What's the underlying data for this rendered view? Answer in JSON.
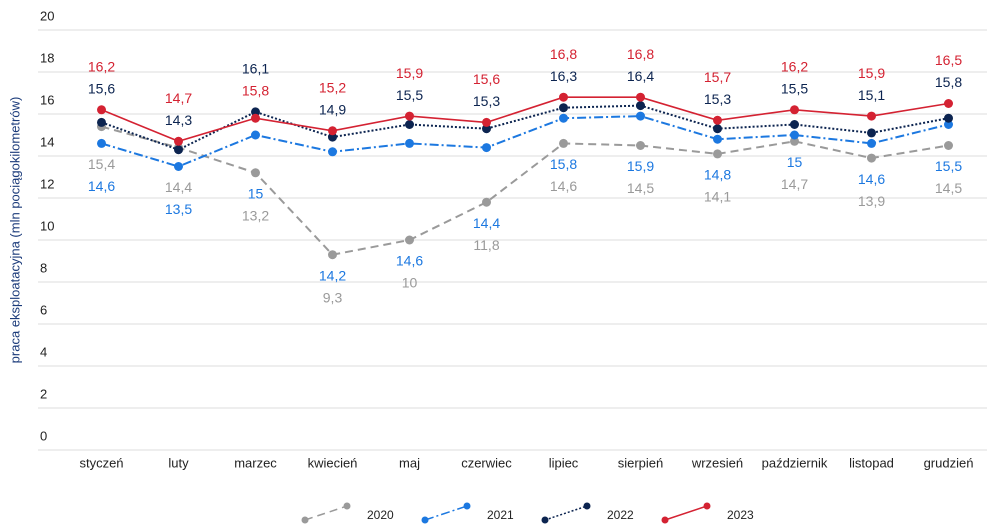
{
  "chart_data": {
    "type": "line",
    "y_label": "praca eksploatacyjna (mln pociągokilometrów)",
    "categories": [
      "styczeń",
      "luty",
      "marzec",
      "kwiecień",
      "maj",
      "czerwiec",
      "lipiec",
      "sierpień",
      "wrzesień",
      "październik",
      "listopad",
      "grudzień"
    ],
    "ylim": [
      0,
      20
    ],
    "yticks": [
      0,
      2,
      4,
      6,
      8,
      10,
      12,
      14,
      16,
      18,
      20
    ],
    "grid": true,
    "legend": "bottom",
    "series": [
      {
        "name": "2020",
        "color": "#9a9a9a",
        "dash": "dashed",
        "values": [
          15.4,
          14.4,
          13.2,
          9.3,
          10,
          11.8,
          14.6,
          14.5,
          14.1,
          14.7,
          13.9,
          14.5
        ],
        "value_labels": [
          "15,4",
          "14,4",
          "13,2",
          "9,3",
          "10",
          "11,8",
          "14,6",
          "14,5",
          "14,1",
          "14,7",
          "13,9",
          "14,5"
        ]
      },
      {
        "name": "2021",
        "color": "#1c78e0",
        "dash": "dashdot",
        "values": [
          14.6,
          13.5,
          15,
          14.2,
          14.6,
          14.4,
          15.8,
          15.9,
          14.8,
          15,
          14.6,
          15.5
        ],
        "value_labels": [
          "14,6",
          "13,5",
          "15",
          "14,2",
          "14,6",
          "14,4",
          "15,8",
          "15,9",
          "14,8",
          "15",
          "14,6",
          "15,5"
        ]
      },
      {
        "name": "2022",
        "color": "#0c2450",
        "dash": "dotted",
        "values": [
          15.6,
          14.3,
          16.1,
          14.9,
          15.5,
          15.3,
          16.3,
          16.4,
          15.3,
          15.5,
          15.1,
          15.8
        ],
        "value_labels": [
          "15,6",
          "14,3",
          "16,1",
          "14,9",
          "15,5",
          "15,3",
          "16,3",
          "16,4",
          "15,3",
          "15,5",
          "15,1",
          "15,8"
        ]
      },
      {
        "name": "2023",
        "color": "#d42232",
        "dash": "solid",
        "values": [
          16.2,
          14.7,
          15.8,
          15.2,
          15.9,
          15.6,
          16.8,
          16.8,
          15.7,
          16.2,
          15.9,
          16.5
        ],
        "value_labels": [
          "16,2",
          "14,7",
          "15,8",
          "15,2",
          "15,9",
          "15,6",
          "16,8",
          "16,8",
          "15,7",
          "16,2",
          "15,9",
          "16,5"
        ]
      }
    ]
  }
}
